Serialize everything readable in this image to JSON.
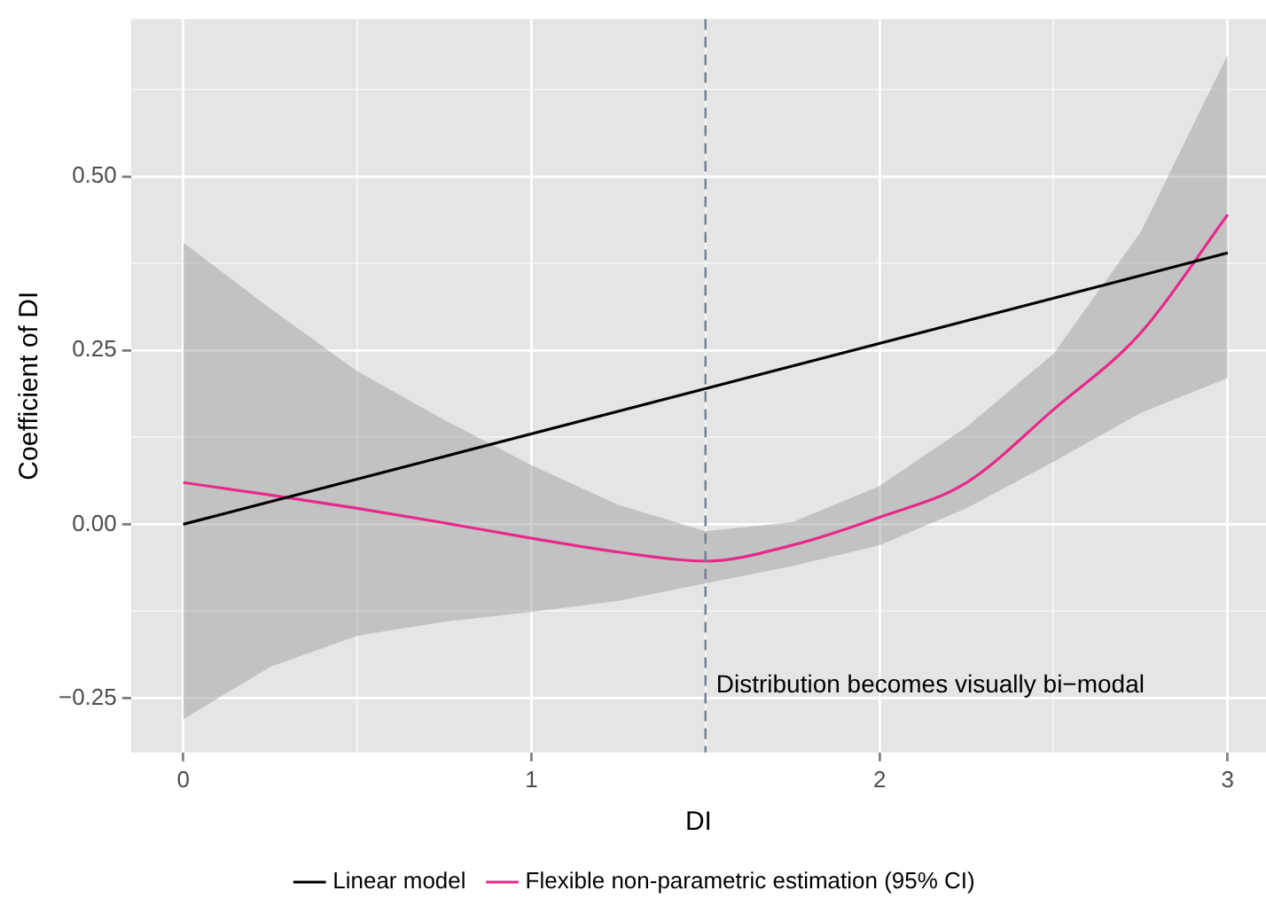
{
  "chart_data": {
    "type": "line",
    "xlabel": "DI",
    "ylabel": "Coefficient of DI",
    "xlim": [
      -0.15,
      3.11
    ],
    "ylim": [
      -0.328,
      0.726
    ],
    "xticks": [
      0,
      {
        "value": 0.5,
        "label": null
      },
      1,
      {
        "value": 1.5,
        "label": null
      },
      2,
      {
        "value": 2.5,
        "label": null
      },
      3
    ],
    "yticks": [
      {
        "value": -0.25,
        "label": "−0.25"
      },
      {
        "value": -0.125,
        "label": null
      },
      {
        "value": 0,
        "label": "0.00"
      },
      {
        "value": 0.125,
        "label": null
      },
      {
        "value": 0.25,
        "label": "0.25"
      },
      {
        "value": 0.375,
        "label": null
      },
      {
        "value": 0.5,
        "label": "0.50"
      },
      {
        "value": 0.625,
        "label": null
      }
    ],
    "grid": true,
    "legend": "bottom",
    "marker": "none",
    "series": [
      {
        "name": "Linear model",
        "color": "#000000",
        "x": [
          0,
          3
        ],
        "values": [
          0,
          0.39
        ]
      },
      {
        "name": "Flexible non-parametric estimation (95% CI)",
        "color": "#e7298a",
        "x": [
          0,
          0.25,
          0.5,
          0.75,
          1,
          1.25,
          1.5,
          1.75,
          2,
          2.25,
          2.5,
          2.75,
          3
        ],
        "values": [
          0.06,
          0.042,
          0.023,
          0.002,
          -0.02,
          -0.04,
          -0.053,
          -0.03,
          0.01,
          0.06,
          0.165,
          0.275,
          0.445
        ],
        "lower": [
          -0.28,
          -0.205,
          -0.16,
          -0.14,
          -0.126,
          -0.11,
          -0.085,
          -0.06,
          -0.03,
          0.023,
          0.09,
          0.16,
          0.21
        ],
        "upper": [
          0.405,
          0.31,
          0.22,
          0.15,
          0.085,
          0.028,
          -0.01,
          0.003,
          0.055,
          0.14,
          0.245,
          0.42,
          0.675
        ]
      }
    ],
    "ref_lines": [
      {
        "axis": "x",
        "value": 1.5,
        "label": "Distribution becomes visually bi−modal",
        "color": "#708090",
        "line_style": "dashed"
      }
    ]
  }
}
